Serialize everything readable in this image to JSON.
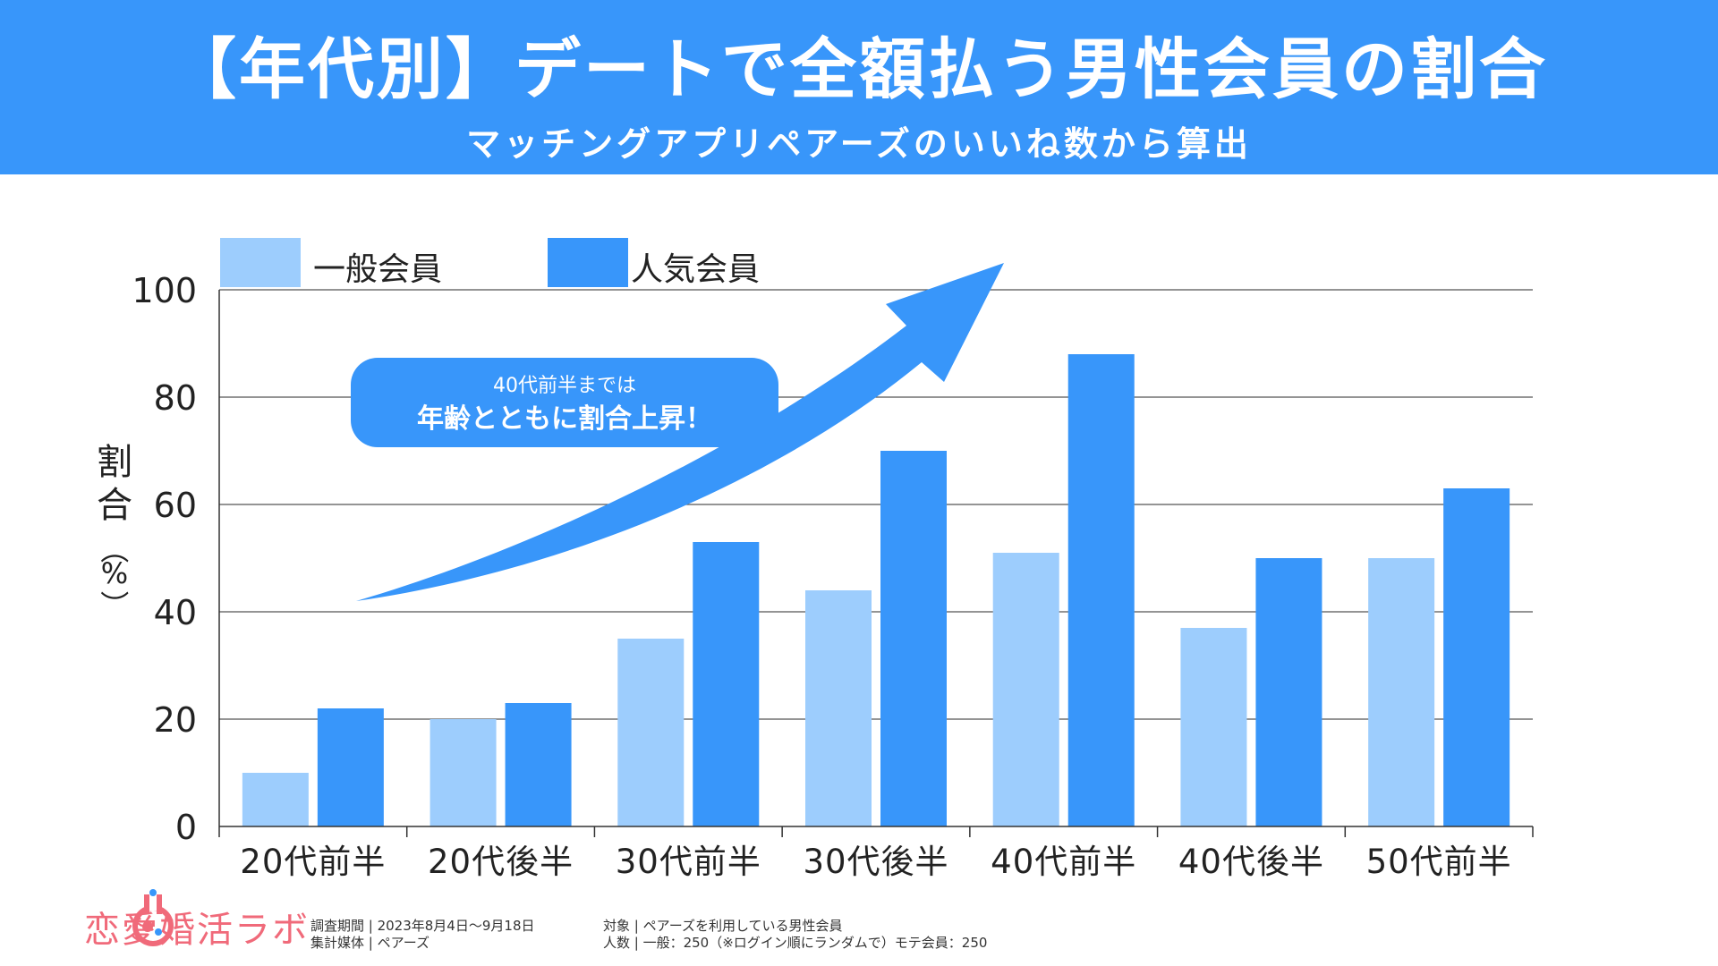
{
  "header": {
    "title": "【年代別】デートで全額払う男性会員の割合",
    "subtitle": "マッチングアプリペアーズのいいね数から算出"
  },
  "colors": {
    "header_bg": "#3896fa",
    "general": "#9dcdfd",
    "popular": "#3896fa",
    "arrow": "#3896fa",
    "logo": "#f06a7a"
  },
  "annotation": {
    "line1": "40代前半までは",
    "line2": "年齢とともに割合上昇！"
  },
  "chart_data": {
    "type": "bar",
    "title": "",
    "ylabel": "割合（%）",
    "xlabel": "",
    "ylim": [
      0,
      100
    ],
    "yticks": [
      0,
      20,
      40,
      60,
      80,
      100
    ],
    "grid": true,
    "legend_position": "top-left",
    "categories": [
      "20代前半",
      "20代後半",
      "30代前半",
      "30代後半",
      "40代前半",
      "40代後半",
      "50代前半"
    ],
    "series": [
      {
        "name": "一般会員",
        "color": "#9dcdfd",
        "values": [
          10,
          20,
          35,
          44,
          51,
          37,
          50
        ]
      },
      {
        "name": "人気会員",
        "color": "#3896fa",
        "values": [
          22,
          23,
          53,
          70,
          88,
          50,
          63
        ]
      }
    ]
  },
  "footer": {
    "brand": "恋愛婚活ラボ",
    "survey_period": "調査期間 | 2023年8月4日〜9月18日",
    "media": "集計媒体 | ペアーズ",
    "target": "対象 | ペアーズを利用している男性会員",
    "count": "人数 | 一般：250（※ログイン順にランダムで）モテ会員：250"
  }
}
